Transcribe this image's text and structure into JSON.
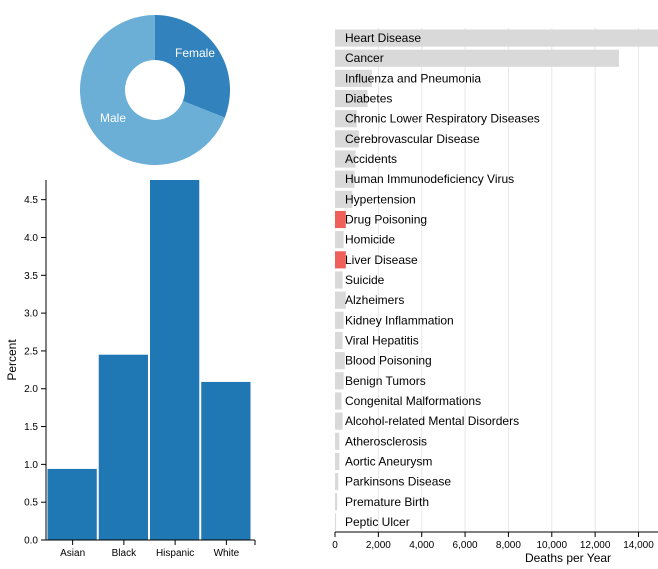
{
  "colors": {
    "bar_blue": "#1f77b4",
    "donut_female": "#3182bd",
    "donut_male": "#6baed6",
    "cause_bar_gray": "#d9d9d9",
    "cause_bar_highlight": "#f0605a",
    "grid": "#e8e8e8"
  },
  "chart_data": [
    {
      "type": "pie",
      "donut": true,
      "labels": [
        "Female",
        "Male"
      ],
      "values": [
        31,
        69
      ]
    },
    {
      "type": "bar",
      "categories": [
        "Asian",
        "Black",
        "Hispanic",
        "White"
      ],
      "values": [
        0.94,
        2.45,
        4.76,
        2.09
      ],
      "ylabel": "Percent",
      "ylim": [
        0,
        4.76
      ],
      "yticks": [
        0.0,
        0.5,
        1.0,
        1.5,
        2.0,
        2.5,
        3.0,
        3.5,
        4.0,
        4.5
      ],
      "yticklabels": [
        "0.0",
        "0.5",
        "1.0",
        "1.5",
        "2.0",
        "2.5",
        "3.0",
        "3.5",
        "4.0",
        "4.5"
      ]
    },
    {
      "type": "bar",
      "orientation": "horizontal",
      "categories": [
        "Heart Disease",
        "Cancer",
        "Influenza and Pneumonia",
        "Diabetes",
        "Chronic Lower Respiratory Diseases",
        "Cerebrovascular Disease",
        "Accidents",
        "Human Immunodeficiency Virus",
        "Hypertension",
        "Drug Poisoning",
        "Homicide",
        "Liver Disease",
        "Suicide",
        "Alzheimers",
        "Kidney Inflammation",
        "Viral Hepatitis",
        "Blood Poisoning",
        "Benign Tumors",
        "Congenital Malformations",
        "Alcohol-related Mental Disorders",
        "Atherosclerosis",
        "Aortic Aneurysm",
        "Parkinsons Disease",
        "Premature Birth",
        "Peptic Ulcer"
      ],
      "values": [
        14900,
        13100,
        1700,
        1500,
        1000,
        1100,
        950,
        900,
        800,
        500,
        400,
        500,
        350,
        500,
        400,
        350,
        450,
        400,
        300,
        350,
        200,
        200,
        150,
        100,
        50
      ],
      "highlighted": [
        "Drug Poisoning",
        "Liver Disease"
      ],
      "xlabel": "Deaths per Year",
      "xlim": [
        0,
        14900
      ],
      "xticks": [
        0,
        2000,
        4000,
        6000,
        8000,
        10000,
        12000,
        14000
      ],
      "xticklabels": [
        "0",
        "2,000",
        "4,000",
        "6,000",
        "8,000",
        "10,000",
        "12,000",
        "14,000"
      ]
    }
  ]
}
